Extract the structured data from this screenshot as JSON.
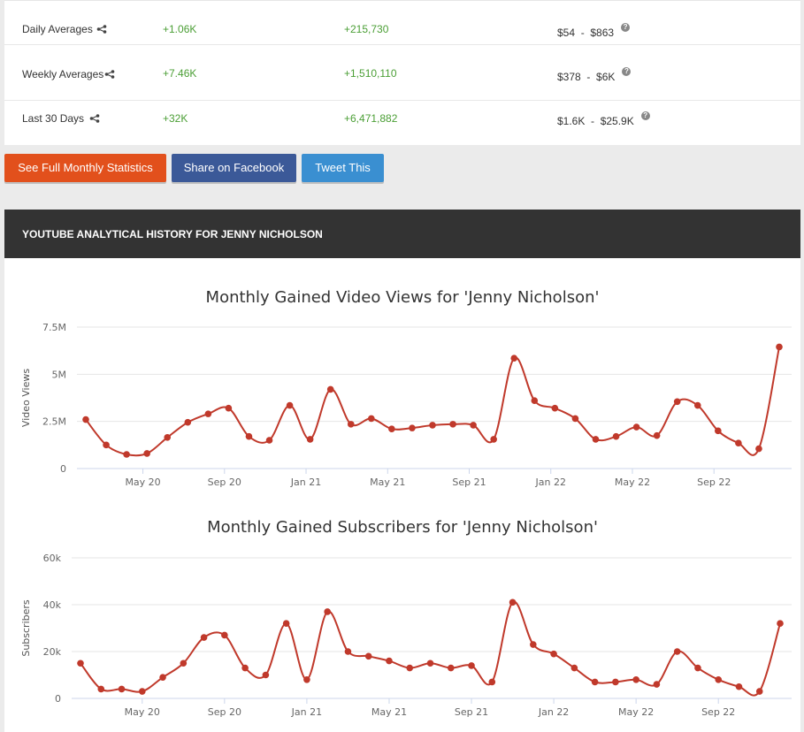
{
  "stats_rows": [
    {
      "label": "Daily Averages",
      "subs": "+1.06K",
      "views": "+215,730",
      "earn_low": "$54",
      "earn_high": "$863"
    },
    {
      "label": "Weekly Averages",
      "subs": "+7.46K",
      "views": "+1,510,110",
      "earn_low": "$378",
      "earn_high": "$6K"
    },
    {
      "label": "Last 30 Days",
      "subs": "+32K",
      "views": "+6,471,882",
      "earn_low": "$1.6K",
      "earn_high": "$25.9K"
    }
  ],
  "range_sep": "-",
  "buttons": {
    "monthly": "See Full Monthly Statistics",
    "facebook": "Share on Facebook",
    "tweet": "Tweet This"
  },
  "section_title": "YOUTUBE ANALYTICAL HISTORY FOR JENNY NICHOLSON",
  "colors": {
    "line": "#c0392b",
    "gain": "#4a9e34",
    "btn_orange": "#e2501c",
    "btn_fb": "#3b5998",
    "btn_tw": "#3a8fd1"
  },
  "chart_data": [
    {
      "type": "line",
      "title": "Monthly Gained Video Views for 'Jenny Nicholson'",
      "ylabel": "Video Views",
      "xlabel": "",
      "ylim": [
        0,
        7500000
      ],
      "yticks": [
        0,
        2500000,
        5000000,
        7500000
      ],
      "ytick_labels": [
        "0",
        "2.5M",
        "5M",
        "7.5M"
      ],
      "xtick_labels": [
        "May 20",
        "Sep 20",
        "Jan 21",
        "May 21",
        "Sep 21",
        "Jan 22",
        "May 22",
        "Sep 22"
      ],
      "xtick_index": [
        2.8,
        6.8,
        10.8,
        14.8,
        18.8,
        22.8,
        26.8,
        30.8
      ],
      "grid": true,
      "values": [
        2600000,
        1250000,
        750000,
        800000,
        1650000,
        2450000,
        2900000,
        3200000,
        1700000,
        1500000,
        3350000,
        1550000,
        4200000,
        2350000,
        2650000,
        2100000,
        2150000,
        2300000,
        2350000,
        2300000,
        1550000,
        5850000,
        3600000,
        3200000,
        2650000,
        1550000,
        1700000,
        2200000,
        1750000,
        3550000,
        3350000,
        2000000,
        1350000,
        1050000,
        6450000
      ]
    },
    {
      "type": "line",
      "title": "Monthly Gained Subscribers for 'Jenny Nicholson'",
      "ylabel": "Subscribers",
      "xlabel": "",
      "ylim": [
        0,
        60000
      ],
      "yticks": [
        0,
        20000,
        40000,
        60000
      ],
      "ytick_labels": [
        "0",
        "20k",
        "40k",
        "60k"
      ],
      "xtick_labels": [
        "May 20",
        "Sep 20",
        "Jan 21",
        "May 21",
        "Sep 21",
        "Jan 22",
        "May 22",
        "Sep 22"
      ],
      "xtick_index": [
        3,
        7,
        11,
        15,
        19,
        23,
        27,
        31
      ],
      "grid": true,
      "values": [
        15000,
        4000,
        4000,
        3000,
        9000,
        15000,
        26000,
        27000,
        13000,
        10000,
        32000,
        8000,
        37000,
        20000,
        18000,
        16000,
        13000,
        15000,
        13000,
        14000,
        7000,
        41000,
        23000,
        19000,
        13000,
        7000,
        7000,
        8000,
        6000,
        20000,
        13000,
        8000,
        5000,
        3000,
        32000
      ]
    }
  ]
}
